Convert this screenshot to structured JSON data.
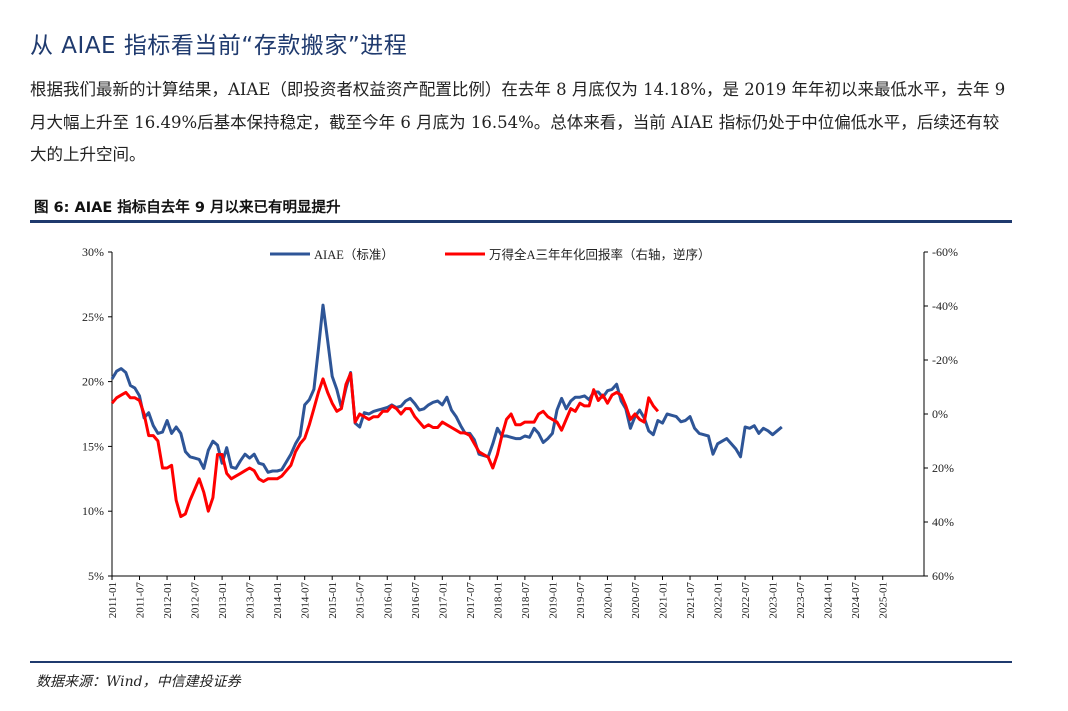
{
  "heading": "从 AIAE 指标看当前“存款搬家”进程",
  "paragraph": "根据我们最新的计算结果，AIAE（即投资者权益资产配置比例）在去年 8 月底仅为 14.18%，是 2019 年年初以来最低水平，去年 9 月大幅上升至 16.49%后基本保持稳定，截至今年 6 月底为 16.54%。总体来看，当前 AIAE 指标仍处于中位偏低水平，后续还有较大的上升空间。",
  "figure_title": "图 6: AIAE 指标自去年 9 月以来已有明显提升",
  "source": "数据来源：Wind，中信建投证券",
  "colors": {
    "aiae": "#2e5597",
    "return": "#ff0000",
    "brand": "#1f3a6e"
  },
  "chart_data": {
    "type": "line",
    "x_start": "2011-01",
    "x_ticks": [
      "2011-01",
      "2011-07",
      "2012-01",
      "2012-07",
      "2013-01",
      "2013-07",
      "2014-01",
      "2014-07",
      "2015-01",
      "2015-07",
      "2016-01",
      "2016-07",
      "2017-01",
      "2017-07",
      "2018-01",
      "2018-07",
      "2019-01",
      "2019-07",
      "2020-01",
      "2020-07",
      "2021-01",
      "2021-07",
      "2022-01",
      "2022-07",
      "2023-01",
      "2023-07",
      "2024-01",
      "2024-07",
      "2025-01"
    ],
    "y_left": {
      "min": 5,
      "max": 30,
      "ticks": [
        "5%",
        "10%",
        "15%",
        "20%",
        "25%",
        "30%"
      ]
    },
    "y_right": {
      "min": -60,
      "max": 60,
      "reversed": true,
      "ticks": [
        "-60%",
        "-40%",
        "-20%",
        "0%",
        "20%",
        "40%",
        "60%"
      ]
    },
    "legend_placement": "top",
    "series": [
      {
        "name": "AIAE（标准）",
        "axis": "left",
        "values": [
          20.2,
          20.8,
          21.0,
          20.7,
          19.7,
          19.5,
          18.9,
          17.2,
          17.6,
          16.6,
          16.0,
          16.1,
          17.0,
          16.0,
          16.5,
          16.0,
          14.6,
          14.2,
          14.1,
          14.0,
          13.3,
          14.7,
          15.4,
          15.1,
          13.7,
          14.9,
          13.4,
          13.3,
          13.9,
          14.4,
          14.1,
          14.4,
          13.7,
          13.6,
          13.0,
          13.1,
          13.1,
          13.2,
          13.8,
          14.4,
          15.2,
          15.8,
          18.2,
          18.6,
          19.4,
          22.5,
          25.9,
          23.2,
          20.4,
          19.4,
          18.0,
          19.5,
          20.7,
          16.8,
          16.5,
          17.6,
          17.5,
          17.7,
          17.8,
          17.9,
          18.0,
          18.2,
          18.0,
          18.1,
          18.5,
          18.7,
          18.3,
          17.8,
          17.9,
          18.2,
          18.4,
          18.5,
          18.2,
          18.8,
          17.8,
          17.3,
          16.6,
          16.0,
          16.0,
          15.5,
          14.4,
          14.3,
          14.2,
          15.2,
          16.4,
          15.8,
          15.8,
          15.7,
          15.6,
          15.6,
          15.8,
          15.7,
          16.4,
          16.0,
          15.3,
          15.6,
          16.0,
          17.8,
          18.7,
          17.9,
          18.5,
          18.8,
          18.8,
          18.9,
          18.6,
          19.2,
          19.2,
          18.8,
          19.3,
          19.4,
          19.8,
          18.5,
          17.9,
          16.4,
          17.3,
          17.8,
          17.2,
          16.2,
          15.9,
          17.0,
          16.8,
          17.5,
          17.4,
          17.3,
          16.9,
          17.0,
          17.3,
          16.4,
          16.0,
          15.9,
          15.8,
          14.4,
          15.2,
          15.4,
          15.6,
          15.2,
          14.8,
          14.2,
          16.5,
          16.4,
          16.6,
          16.0,
          16.4,
          16.2,
          15.9,
          16.2,
          16.5
        ]
      },
      {
        "name": "万得全A三年年化回报率（右轴，逆序）",
        "axis": "right",
        "values": [
          -4,
          -6,
          -7,
          -8,
          -6,
          -6,
          -5,
          0,
          8,
          8,
          10,
          20,
          20,
          19,
          32,
          38,
          37,
          32,
          28,
          24,
          29,
          36,
          31,
          15,
          15,
          22,
          24,
          23,
          22,
          21,
          20,
          21,
          24,
          25,
          24,
          24,
          24,
          23,
          21,
          19,
          14,
          11,
          9,
          4,
          -2,
          -8,
          -13,
          -8,
          -4,
          -1,
          -2,
          -11,
          -15,
          3,
          0,
          1,
          2,
          1,
          1,
          -1,
          -1,
          -3,
          -2,
          0,
          -2,
          -2,
          1,
          3,
          5,
          4,
          5,
          5,
          3,
          4,
          5,
          6,
          7,
          7,
          8,
          11,
          14,
          15,
          16,
          20,
          15,
          8,
          2,
          0,
          4,
          4,
          3,
          3,
          3,
          0,
          -1,
          1,
          2,
          3,
          6,
          2,
          -2,
          -1,
          -4,
          -3,
          -3,
          -9,
          -5,
          -7,
          -4,
          -7,
          -8,
          -7,
          -3,
          2,
          0,
          2,
          3,
          -6,
          -3,
          -1
        ]
      }
    ]
  }
}
